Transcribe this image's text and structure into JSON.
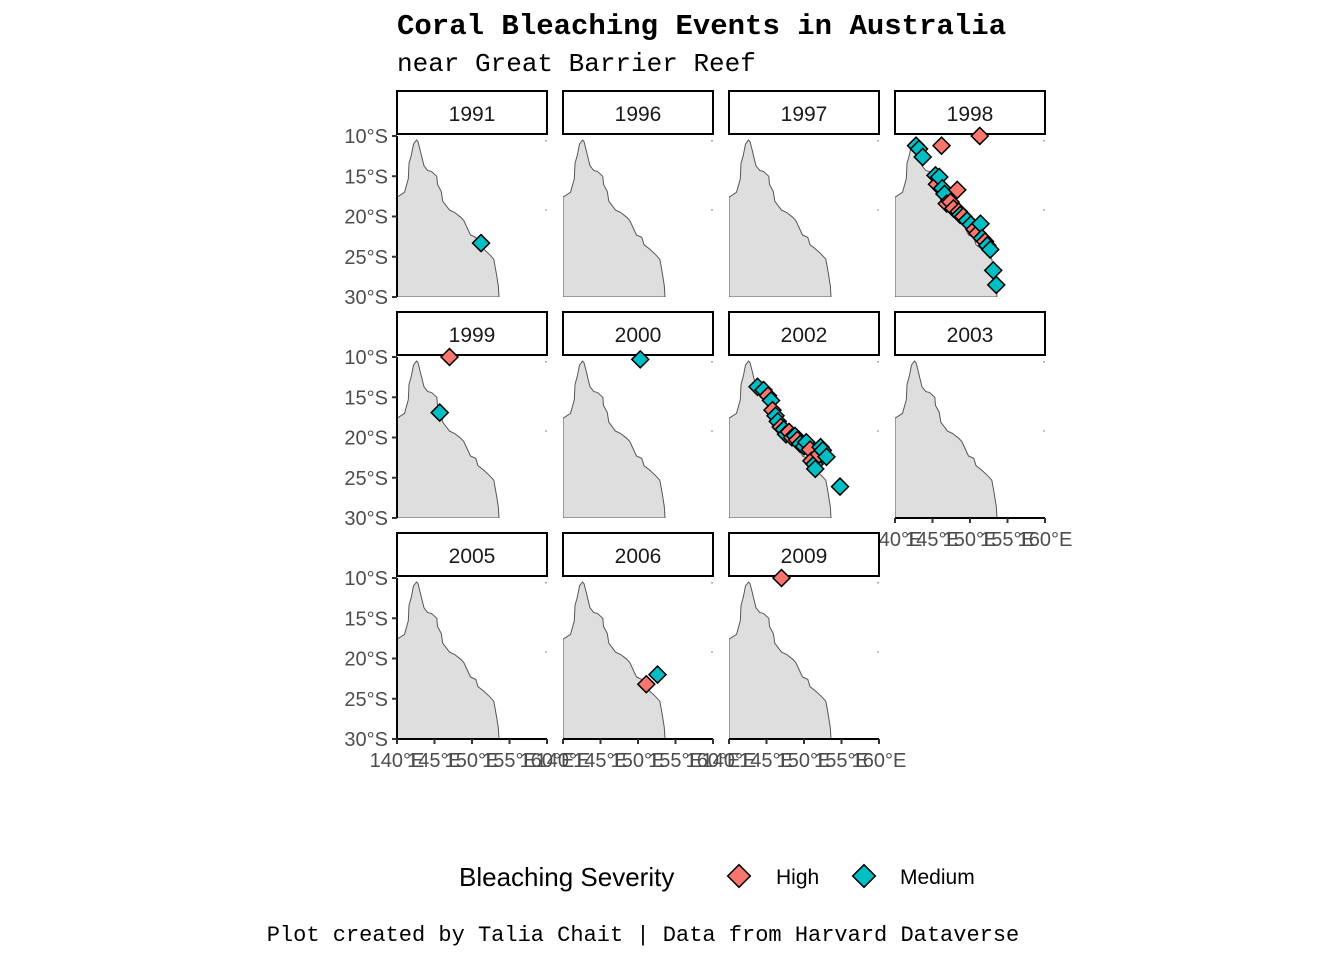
{
  "chart_data": {
    "type": "scatter",
    "title": "Coral Bleaching Events in Australia",
    "subtitle": "near Great Barrier Reef",
    "caption": "Plot created by Talia Chait | Data from Harvard Dataverse",
    "legend": {
      "title": "Bleaching Severity",
      "position": "bottom",
      "entries": [
        {
          "name": "High",
          "color": "#F8766D"
        },
        {
          "name": "Medium",
          "color": "#00BFC4"
        }
      ]
    },
    "x_axis": {
      "ticks": [
        140,
        145,
        150,
        155,
        160
      ],
      "tick_labels": [
        "140°E",
        "145°E",
        "150°E",
        "155°E",
        "160°E"
      ],
      "range": [
        140,
        160
      ]
    },
    "y_axis": {
      "ticks": [
        -10,
        -15,
        -20,
        -25,
        -30
      ],
      "tick_labels": [
        "10°S",
        "15°S",
        "20°S",
        "25°S",
        "30°S"
      ],
      "range": [
        -30,
        -10
      ]
    },
    "land_color": "#DEDEDE",
    "coast_color": "#555555",
    "grid": false,
    "facets": [
      {
        "year": "1991",
        "points": [
          {
            "lon": 151.2,
            "lat": -23.3,
            "severity": "Medium"
          }
        ]
      },
      {
        "year": "1996",
        "points": []
      },
      {
        "year": "1997",
        "points": []
      },
      {
        "year": "1998",
        "points": [
          {
            "lon": 146.2,
            "lat": -11.2,
            "severity": "High"
          },
          {
            "lon": 151.3,
            "lat": -10.0,
            "severity": "High"
          },
          {
            "lon": 142.8,
            "lat": -11.2,
            "severity": "Medium"
          },
          {
            "lon": 143.2,
            "lat": -11.6,
            "severity": "Medium"
          },
          {
            "lon": 143.7,
            "lat": -12.6,
            "severity": "Medium"
          },
          {
            "lon": 145.4,
            "lat": -14.9,
            "severity": "Medium"
          },
          {
            "lon": 145.6,
            "lat": -16.0,
            "severity": "High"
          },
          {
            "lon": 145.9,
            "lat": -15.1,
            "severity": "Medium"
          },
          {
            "lon": 146.3,
            "lat": -16.5,
            "severity": "Medium"
          },
          {
            "lon": 146.6,
            "lat": -17.2,
            "severity": "Medium"
          },
          {
            "lon": 146.9,
            "lat": -18.4,
            "severity": "High"
          },
          {
            "lon": 147.4,
            "lat": -18.2,
            "severity": "High"
          },
          {
            "lon": 147.8,
            "lat": -19.0,
            "severity": "High"
          },
          {
            "lon": 148.3,
            "lat": -16.7,
            "severity": "High"
          },
          {
            "lon": 148.5,
            "lat": -19.4,
            "severity": "High"
          },
          {
            "lon": 148.7,
            "lat": -19.8,
            "severity": "Medium"
          },
          {
            "lon": 149.1,
            "lat": -20.0,
            "severity": "High"
          },
          {
            "lon": 149.6,
            "lat": -20.5,
            "severity": "Medium"
          },
          {
            "lon": 150.1,
            "lat": -21.0,
            "severity": "Medium"
          },
          {
            "lon": 150.6,
            "lat": -21.6,
            "severity": "High"
          },
          {
            "lon": 151.0,
            "lat": -22.1,
            "severity": "High"
          },
          {
            "lon": 151.4,
            "lat": -20.9,
            "severity": "Medium"
          },
          {
            "lon": 151.6,
            "lat": -22.7,
            "severity": "Medium"
          },
          {
            "lon": 152.0,
            "lat": -23.1,
            "severity": "High"
          },
          {
            "lon": 152.3,
            "lat": -23.6,
            "severity": "Medium"
          },
          {
            "lon": 152.7,
            "lat": -24.1,
            "severity": "Medium"
          },
          {
            "lon": 153.1,
            "lat": -26.7,
            "severity": "Medium"
          },
          {
            "lon": 153.5,
            "lat": -28.5,
            "severity": "Medium"
          }
        ]
      },
      {
        "year": "1999",
        "points": [
          {
            "lon": 147.0,
            "lat": -10.0,
            "severity": "High"
          },
          {
            "lon": 145.7,
            "lat": -16.9,
            "severity": "Medium"
          }
        ]
      },
      {
        "year": "2000",
        "points": [
          {
            "lon": 150.3,
            "lat": -10.3,
            "severity": "Medium"
          }
        ]
      },
      {
        "year": "2002",
        "points": [
          {
            "lon": 143.8,
            "lat": -13.7,
            "severity": "Medium"
          },
          {
            "lon": 144.6,
            "lat": -14.1,
            "severity": "Medium"
          },
          {
            "lon": 145.2,
            "lat": -14.8,
            "severity": "High"
          },
          {
            "lon": 145.6,
            "lat": -15.4,
            "severity": "Medium"
          },
          {
            "lon": 145.8,
            "lat": -16.6,
            "severity": "High"
          },
          {
            "lon": 146.2,
            "lat": -17.3,
            "severity": "Medium"
          },
          {
            "lon": 146.5,
            "lat": -18.0,
            "severity": "Medium"
          },
          {
            "lon": 146.9,
            "lat": -18.7,
            "severity": "High"
          },
          {
            "lon": 147.3,
            "lat": -19.0,
            "severity": "Medium"
          },
          {
            "lon": 147.6,
            "lat": -19.6,
            "severity": "Medium"
          },
          {
            "lon": 148.0,
            "lat": -19.3,
            "severity": "High"
          },
          {
            "lon": 148.4,
            "lat": -20.0,
            "severity": "High"
          },
          {
            "lon": 148.8,
            "lat": -19.8,
            "severity": "Medium"
          },
          {
            "lon": 149.1,
            "lat": -20.3,
            "severity": "High"
          },
          {
            "lon": 149.5,
            "lat": -20.8,
            "severity": "Medium"
          },
          {
            "lon": 150.0,
            "lat": -21.1,
            "severity": "Medium"
          },
          {
            "lon": 150.3,
            "lat": -20.6,
            "severity": "Medium"
          },
          {
            "lon": 150.8,
            "lat": -21.5,
            "severity": "High"
          },
          {
            "lon": 151.0,
            "lat": -22.9,
            "severity": "High"
          },
          {
            "lon": 151.4,
            "lat": -23.3,
            "severity": "Medium"
          },
          {
            "lon": 151.5,
            "lat": -23.9,
            "severity": "Medium"
          },
          {
            "lon": 152.0,
            "lat": -22.1,
            "severity": "High"
          },
          {
            "lon": 152.2,
            "lat": -21.2,
            "severity": "Medium"
          },
          {
            "lon": 152.5,
            "lat": -21.6,
            "severity": "Medium"
          },
          {
            "lon": 153.0,
            "lat": -22.4,
            "severity": "Medium"
          },
          {
            "lon": 154.8,
            "lat": -26.1,
            "severity": "Medium"
          }
        ]
      },
      {
        "year": "2003",
        "points": []
      },
      {
        "year": "2005",
        "points": []
      },
      {
        "year": "2006",
        "points": [
          {
            "lon": 151.1,
            "lat": -23.2,
            "severity": "High"
          },
          {
            "lon": 152.6,
            "lat": -22.0,
            "severity": "Medium"
          }
        ]
      },
      {
        "year": "2009",
        "points": [
          {
            "lon": 147.0,
            "lat": -10.0,
            "severity": "High"
          }
        ]
      }
    ]
  }
}
